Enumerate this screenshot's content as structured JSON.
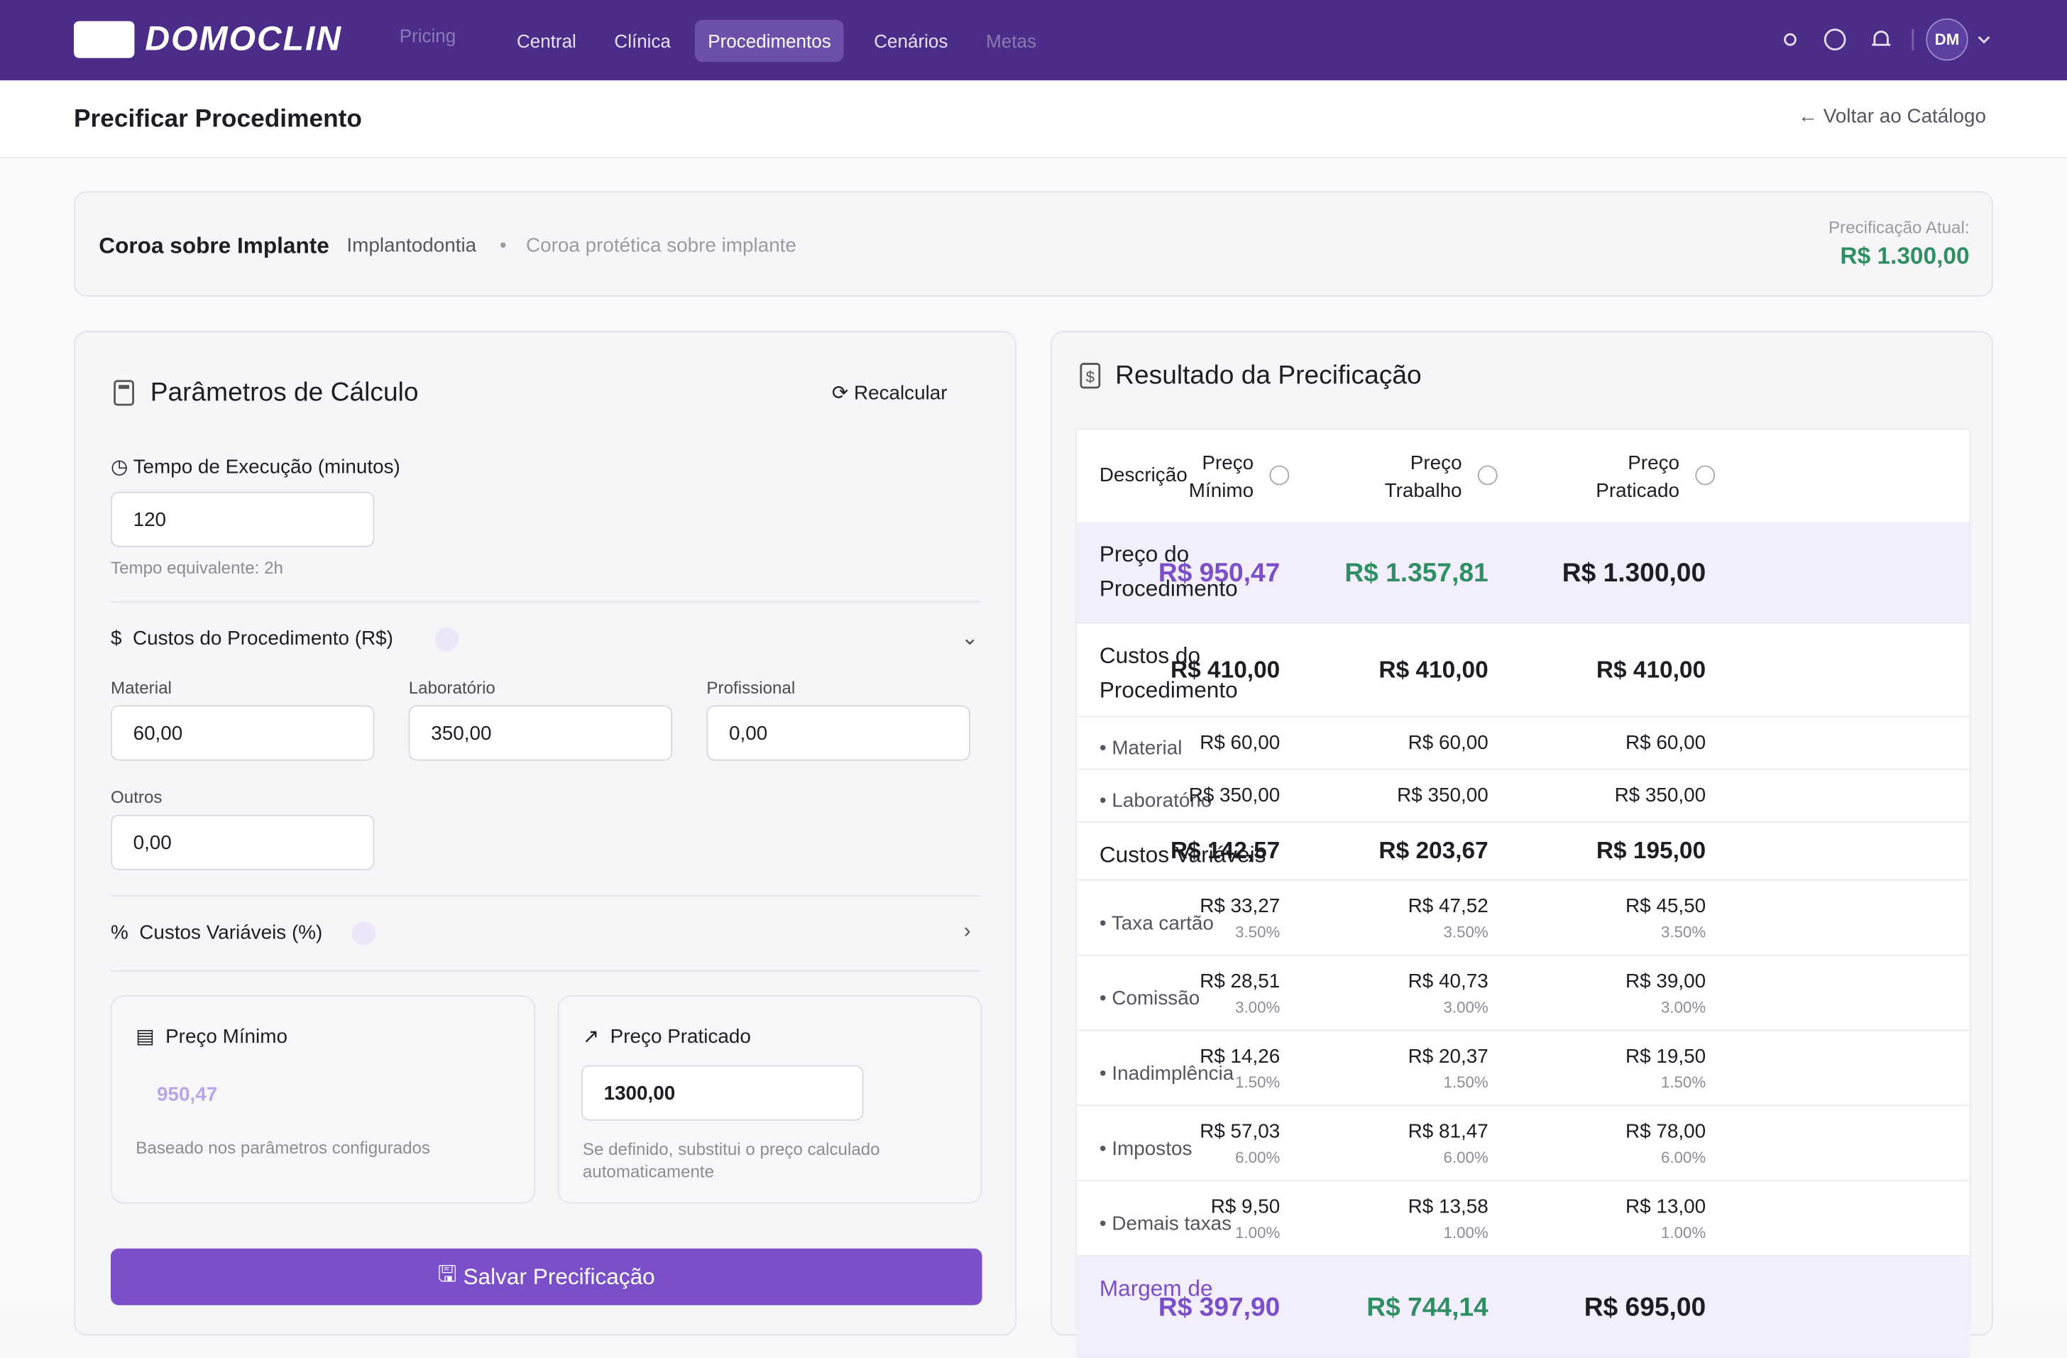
{
  "header": {
    "logo": "DOMOCLIN",
    "tag": "Pricing",
    "nav": [
      "Central",
      "Clínica",
      "Procedimentos",
      "Cenários",
      "Metas"
    ],
    "avatar": "DM"
  },
  "page": {
    "title": "Precificar Procedimento",
    "back": "Voltar ao Catálogo"
  },
  "procedure": {
    "name": "Coroa sobre Implante",
    "category": "Implantodontia",
    "description": "Coroa protética sobre implante",
    "current_label": "Precificação Atual:",
    "current_value": "R$ 1.300,00"
  },
  "params": {
    "title": "Parâmetros de Cálculo",
    "recalc": "Recalcular",
    "time_label": "Tempo de Execução (minutos)",
    "time_value": "120",
    "time_hint": "Tempo equivalente: 2h",
    "costs_title": "Custos do Procedimento (R$)",
    "fields": [
      {
        "label": "Material",
        "value": "60,00"
      },
      {
        "label": "Laboratório",
        "value": "350,00"
      },
      {
        "label": "Profissional",
        "value": "0,00"
      },
      {
        "label": "Outros",
        "value": "0,00"
      }
    ],
    "variable_title": "Custos Variáveis (%)",
    "min_card": {
      "title": "Preço Mínimo",
      "value": "950,47",
      "hint": "Baseado nos parâmetros configurados"
    },
    "practiced_card": {
      "title": "Preço Praticado",
      "value": "1300,00",
      "hint": "Se definido, substitui o preço calculado automaticamente"
    },
    "save": "Salvar Precificação"
  },
  "result": {
    "title": "Resultado da Precificação",
    "columns": [
      "Descrição",
      "Preço Mínimo",
      "Preço Trabalho",
      "Preço Praticado"
    ],
    "rows": [
      {
        "label": "Preço do Procedimento",
        "kind": "highlight",
        "values": [
          "R$ 950,47",
          "R$ 1.357,81",
          "R$ 1.300,00"
        ]
      },
      {
        "label": "Custos do Procedimento",
        "kind": "group",
        "values": [
          "R$ 410,00",
          "R$ 410,00",
          "R$ 410,00"
        ]
      },
      {
        "label": "Material",
        "kind": "item",
        "values": [
          "R$ 60,00",
          "R$ 60,00",
          "R$ 60,00"
        ]
      },
      {
        "label": "Laboratório",
        "kind": "item",
        "values": [
          "R$ 350,00",
          "R$ 350,00",
          "R$ 350,00"
        ]
      },
      {
        "label": "Custos Variáveis",
        "kind": "group",
        "values": [
          "R$ 142,57",
          "R$ 203,67",
          "R$ 195,00"
        ]
      },
      {
        "label": "Taxa cartão",
        "kind": "item",
        "values": [
          "R$ 33,27",
          "R$ 47,52",
          "R$ 45,50"
        ],
        "percents": [
          "3.50%",
          "3.50%",
          "3.50%"
        ]
      },
      {
        "label": "Comissão",
        "kind": "item",
        "values": [
          "R$ 28,51",
          "R$ 40,73",
          "R$ 39,00"
        ],
        "percents": [
          "3.00%",
          "3.00%",
          "3.00%"
        ]
      },
      {
        "label": "Inadimplência",
        "kind": "item",
        "values": [
          "R$ 14,26",
          "R$ 20,37",
          "R$ 19,50"
        ],
        "percents": [
          "1.50%",
          "1.50%",
          "1.50%"
        ]
      },
      {
        "label": "Impostos",
        "kind": "item",
        "values": [
          "R$ 57,03",
          "R$ 81,47",
          "R$ 78,00"
        ],
        "percents": [
          "6.00%",
          "6.00%",
          "6.00%"
        ]
      },
      {
        "label": "Demais taxas",
        "kind": "item",
        "values": [
          "R$ 9,50",
          "R$ 13,58",
          "R$ 13,00"
        ],
        "percents": [
          "1.00%",
          "1.00%",
          "1.00%"
        ]
      },
      {
        "label": "Margem de",
        "kind": "highlight",
        "values": [
          "R$ 397,90",
          "R$ 744,14",
          "R$ 695,00"
        ]
      }
    ]
  }
}
